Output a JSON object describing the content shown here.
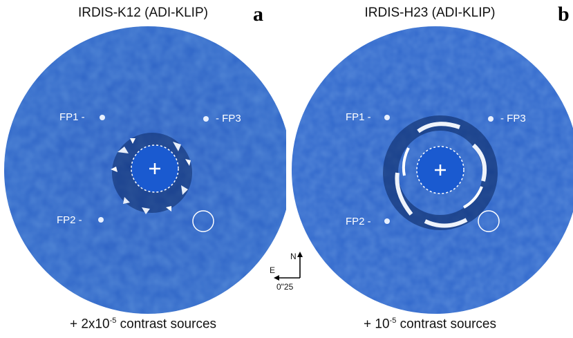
{
  "panels": [
    {
      "letter": "a",
      "title": "IRDIS-K12 (ADI-KLIP)",
      "caption_prefix": "+ 2x10",
      "caption_exp": "-5",
      "caption_suffix": " contrast sources",
      "labels": {
        "fp1": "FP1 -",
        "fp2": "FP2 -",
        "fp3": "- FP3"
      }
    },
    {
      "letter": "b",
      "title": "IRDIS-H23 (ADI-KLIP)",
      "caption_prefix": "+ 10",
      "caption_exp": "-5",
      "caption_suffix": " contrast sources",
      "labels": {
        "fp1": "FP1 -",
        "fp2": "FP2 -",
        "fp3": "- FP3"
      }
    }
  ],
  "compass": {
    "north": "N",
    "east": "E",
    "scale": "0\"25"
  },
  "colors": {
    "field": "#2d64c8",
    "mask": "#1a5ad0",
    "sky_dark": "#1e4c9c"
  }
}
